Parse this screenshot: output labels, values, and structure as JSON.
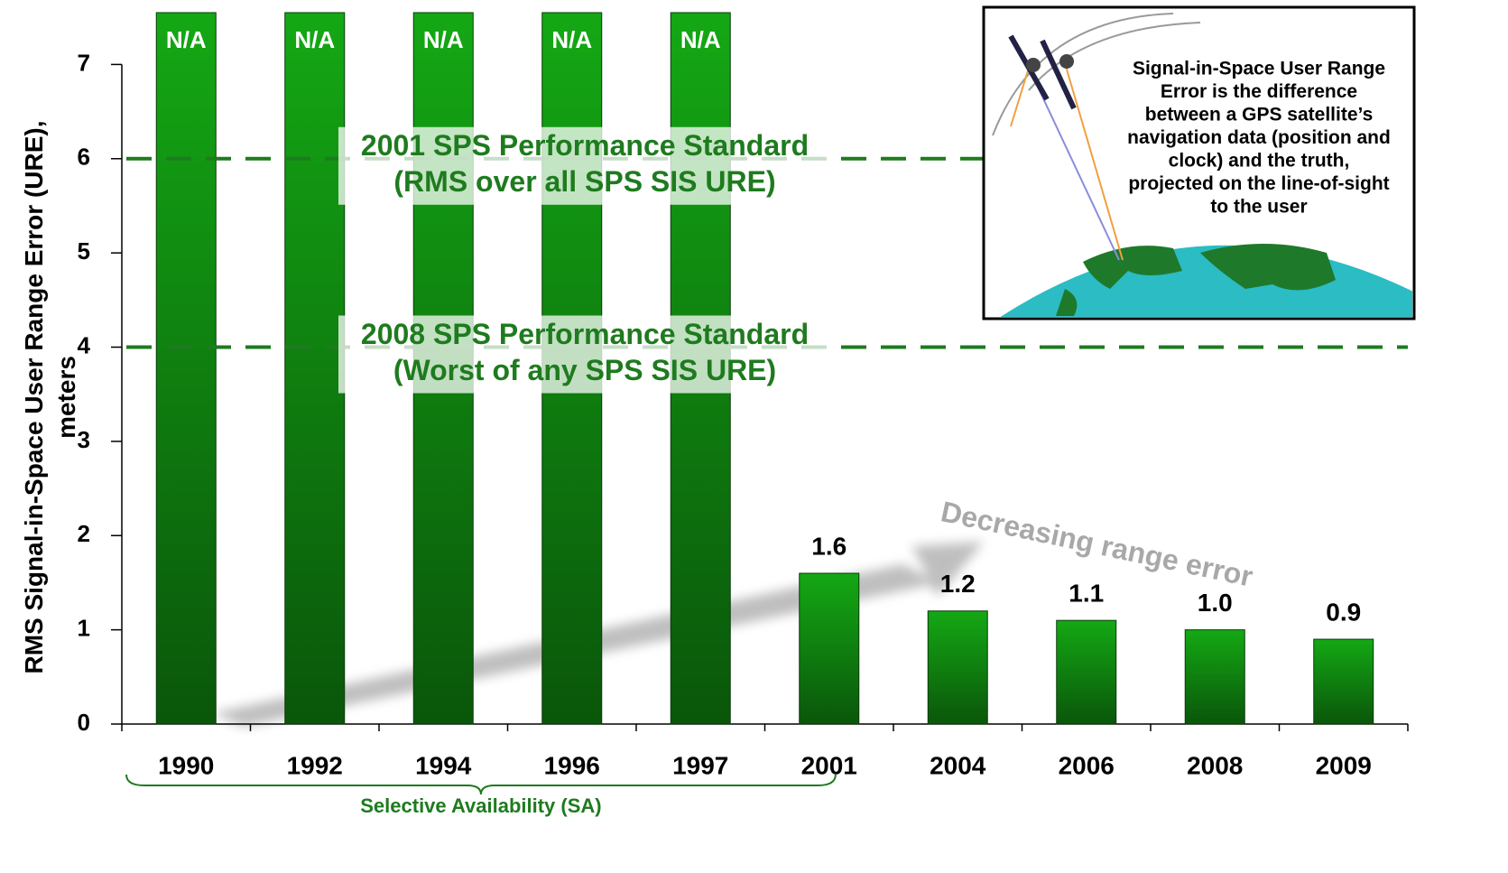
{
  "chart_data": {
    "type": "bar",
    "y_label": [
      "RMS Signal-in-Space User Range Error (URE),",
      "meters"
    ],
    "categories": [
      "1990",
      "1992",
      "1994",
      "1996",
      "1997",
      "2001",
      "2004",
      "2006",
      "2008",
      "2009"
    ],
    "values": [
      null,
      null,
      null,
      null,
      null,
      1.6,
      1.2,
      1.1,
      1.0,
      0.9
    ],
    "value_labels": [
      "N/A",
      "N/A",
      "N/A",
      "N/A",
      "N/A",
      "1.6",
      "1.2",
      "1.1",
      "1.0",
      "0.9"
    ],
    "color": "#14a814",
    "ylim": [
      0,
      7.55
    ],
    "yticks": [
      0,
      1,
      2,
      3,
      4,
      5,
      6,
      7
    ],
    "reference_lines": [
      {
        "value": 6,
        "label": [
          "2001 SPS Performance Standard",
          "(RMS over all SPS SIS URE)"
        ]
      },
      {
        "value": 4,
        "label": [
          "2008 SPS Performance Standard",
          "(Worst of any SPS SIS URE)"
        ]
      }
    ],
    "reference_color": "#1e7b1e",
    "annotation": "Decreasing range error",
    "bracket_label": "Selective Availability (SA)",
    "inset_text": [
      "Signal-in-Space User Range",
      "Error is the difference",
      "between a GPS satellite’s",
      "navigation data (position and",
      "clock) and the truth,",
      "projected on the line-of-sight",
      "to the user"
    ]
  }
}
